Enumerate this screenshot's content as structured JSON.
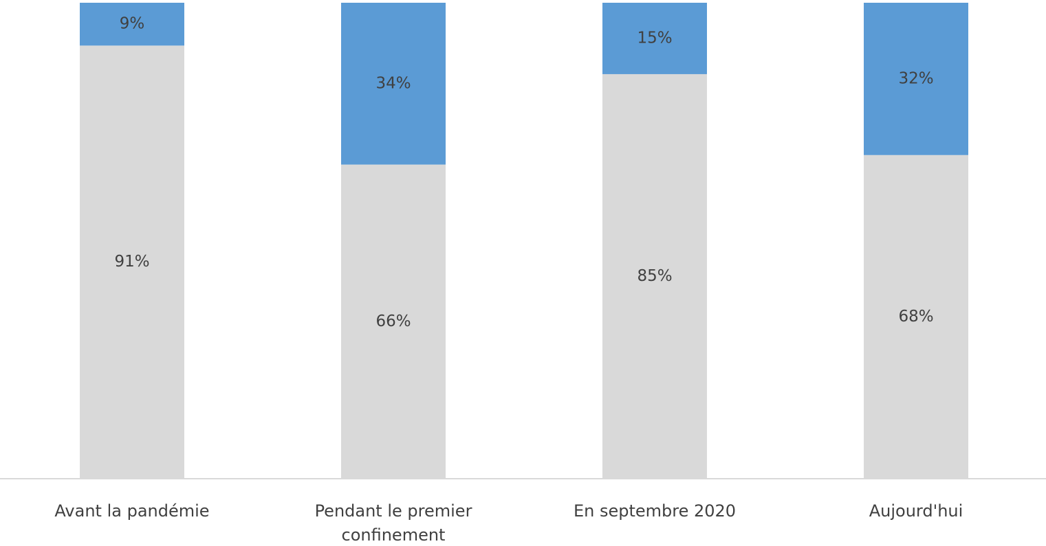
{
  "chart_data": {
    "type": "stacked_bar",
    "categories": [
      "Avant la pandémie",
      "Pendant le premier confinement",
      "En septembre 2020",
      "Aujourd'hui"
    ],
    "series": [
      {
        "color": "#d9d9d9",
        "values": [
          91,
          66,
          85,
          68
        ],
        "value_labels": [
          "91%",
          "66%",
          "85%",
          "68%"
        ]
      },
      {
        "color": "#5b9bd5",
        "values": [
          9,
          34,
          15,
          32
        ],
        "value_labels": [
          "9%",
          "34%",
          "15%",
          "32%"
        ]
      }
    ],
    "ylim": [
      0,
      100
    ]
  }
}
